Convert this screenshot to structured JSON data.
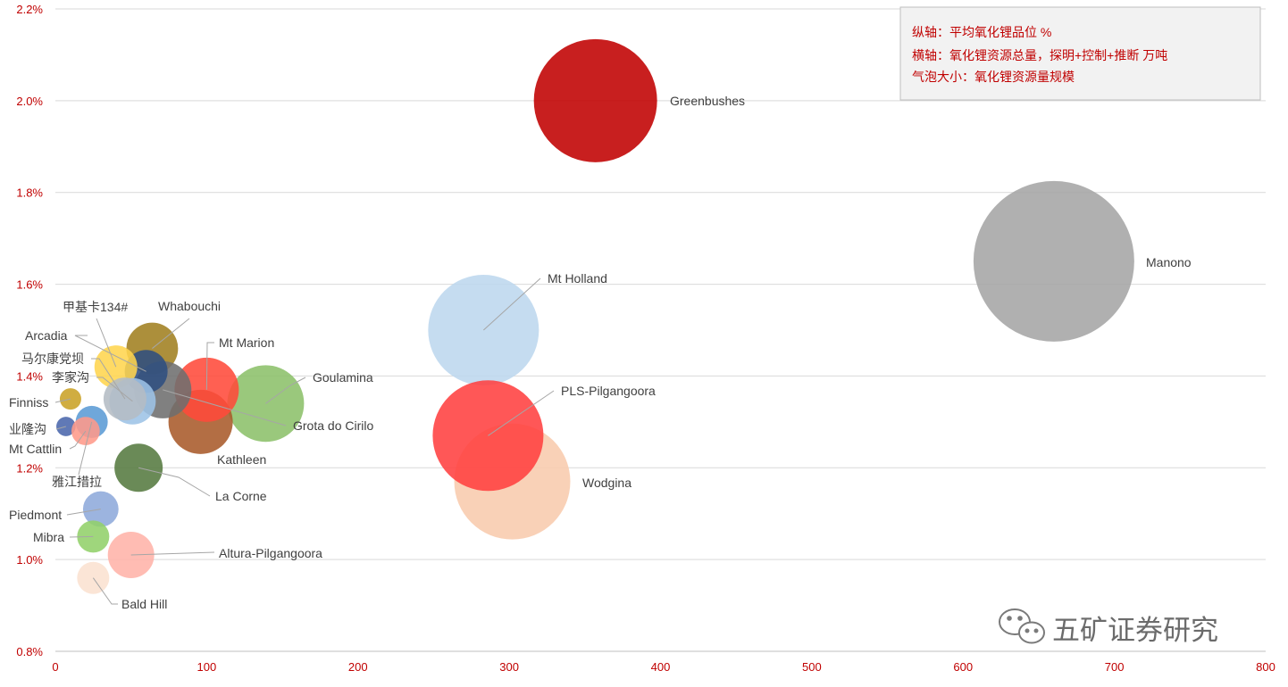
{
  "chart_data": {
    "type": "bubble",
    "title": "",
    "xlabel": "氧化锂资源总量，探明+控制+推断 万吨",
    "ylabel": "平均氧化锂品位 %",
    "xlim": [
      0,
      800
    ],
    "ylim": [
      0.8,
      2.2
    ],
    "x_ticks": [
      "0",
      "100",
      "200",
      "300",
      "400",
      "500",
      "600",
      "700",
      "800"
    ],
    "y_ticks": [
      "0.8%",
      "1.0%",
      "1.2%",
      "1.4%",
      "1.6%",
      "1.8%",
      "2.0%",
      "2.2%"
    ],
    "grid": "horizontal",
    "legend": {
      "placement": "top-right",
      "lines": [
        "纵轴：平均氧化锂品位  %",
        "横轴：氧化锂资源总量，探明+控制+推断  万吨",
        "气泡大小：氧化锂资源量规模"
      ]
    },
    "points": [
      {
        "name": "Manono",
        "x": 660,
        "y": 1.65,
        "size": 900,
        "color": "#a5a5a5"
      },
      {
        "name": "Greenbushes",
        "x": 357,
        "y": 2.0,
        "size": 529,
        "color": "#c00000"
      },
      {
        "name": "Wodgina",
        "x": 302,
        "y": 1.17,
        "size": 469,
        "color": "#f8cbad"
      },
      {
        "name": "Mt Holland",
        "x": 283,
        "y": 1.5,
        "size": 427,
        "color": "#bdd7ee"
      },
      {
        "name": "PLS-Pilgangoora",
        "x": 286,
        "y": 1.27,
        "size": 427,
        "color": "#ff4040"
      },
      {
        "name": "Goulamina",
        "x": 139,
        "y": 1.34,
        "size": 205,
        "color": "#8cc06a"
      },
      {
        "name": "Kathleen",
        "x": 96,
        "y": 1.3,
        "size": 144,
        "color": "#a85a2a"
      },
      {
        "name": "Mt Marion",
        "x": 100,
        "y": 1.37,
        "size": 144,
        "color": "#ff4a3a"
      },
      {
        "name": "Whabouchi",
        "x": 64,
        "y": 1.46,
        "size": 93,
        "color": "#a08020"
      },
      {
        "name": "Grota do Cirilo",
        "x": 71,
        "y": 1.37,
        "size": 114,
        "color": "#6e6e6e"
      },
      {
        "name": "Arcadia",
        "x": 60,
        "y": 1.41,
        "size": 64,
        "color": "#2f4f80"
      },
      {
        "name": "甲基卡134#",
        "x": 40,
        "y": 1.42,
        "size": 64,
        "color": "#ffd54f"
      },
      {
        "name": "李家沟",
        "x": 51,
        "y": 1.345,
        "size": 75,
        "color": "#9dc3e6"
      },
      {
        "name": "马尔康党坝",
        "x": 46,
        "y": 1.35,
        "size": 64,
        "color": "#b4bcc4"
      },
      {
        "name": "Finniss",
        "x": 10,
        "y": 1.35,
        "size": 16,
        "color": "#c9a227"
      },
      {
        "name": "雅江措拉",
        "x": 24,
        "y": 1.3,
        "size": 36,
        "color": "#5b9bd5"
      },
      {
        "name": "业隆沟",
        "x": 7,
        "y": 1.29,
        "size": 13,
        "color": "#4a66ac"
      },
      {
        "name": "Mt Cattlin",
        "x": 20,
        "y": 1.28,
        "size": 28,
        "color": "#ff9a8a"
      },
      {
        "name": "La Corne",
        "x": 55,
        "y": 1.2,
        "size": 81,
        "color": "#557a40"
      },
      {
        "name": "Piedmont",
        "x": 30,
        "y": 1.11,
        "size": 44,
        "color": "#8eaadb"
      },
      {
        "name": "Mibra",
        "x": 25,
        "y": 1.05,
        "size": 36,
        "color": "#92d06a"
      },
      {
        "name": "Altura-Pilgangoora",
        "x": 50,
        "y": 1.01,
        "size": 75,
        "color": "#ffb3a8"
      },
      {
        "name": "Bald Hill",
        "x": 25,
        "y": 0.96,
        "size": 36,
        "color": "#fae1d0"
      }
    ]
  },
  "watermark": "五矿证券研究"
}
